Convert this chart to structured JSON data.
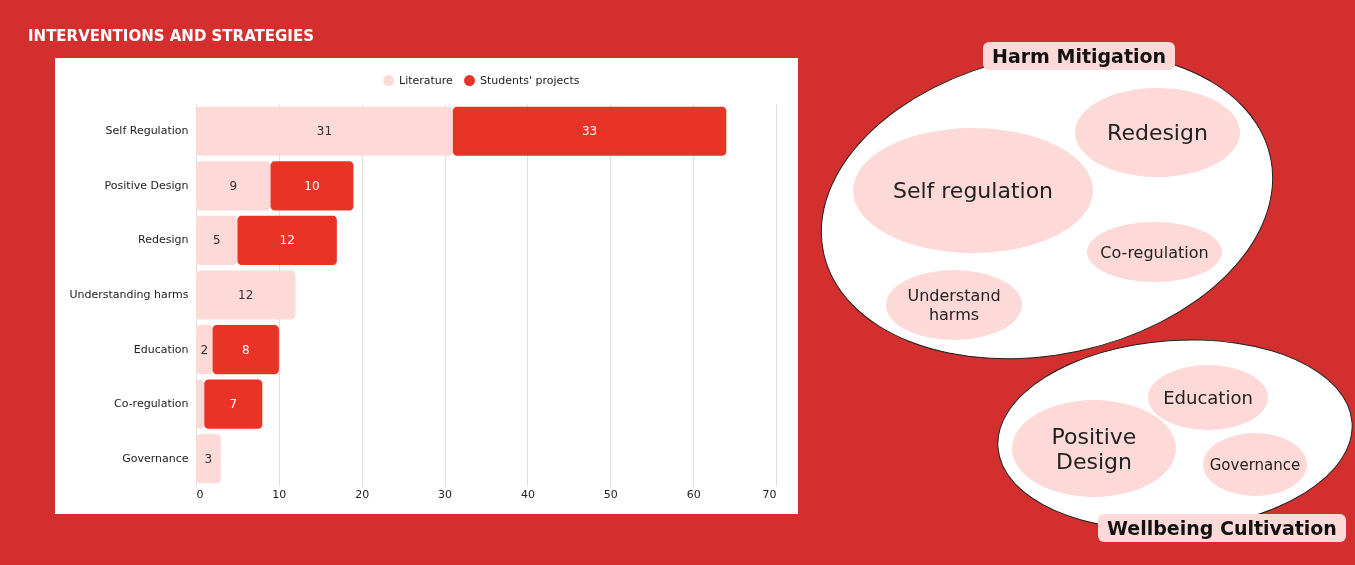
{
  "chart_data": [
    {
      "type": "bar",
      "orientation": "horizontal",
      "stacked": true,
      "title": "INTERVENTIONS AND STRATEGIES",
      "categories": [
        "Self Regulation",
        "Positive Design",
        "Redesign",
        "Understanding harms",
        "Education",
        "Co-regulation",
        "Governance"
      ],
      "series": [
        {
          "name": "Literature",
          "color": "#fdd9d8",
          "values": [
            31,
            9,
            5,
            12,
            2,
            1,
            3
          ],
          "value_labels": [
            "31",
            "9",
            "5",
            "12",
            "2",
            null,
            "3"
          ]
        },
        {
          "name": "Students' projects",
          "color": "#e83326",
          "values": [
            33,
            10,
            12,
            null,
            8,
            7,
            null
          ],
          "value_labels": [
            "33",
            "10",
            "12",
            null,
            "8",
            "7",
            null
          ]
        }
      ],
      "xlim": [
        0,
        70
      ],
      "xticks": [
        0,
        10,
        20,
        30,
        40,
        50,
        60,
        70
      ],
      "grid": "x",
      "legend": "top"
    },
    {
      "type": "other",
      "title": "Harm Mitigation",
      "annotations": [
        "Redesign",
        "Self regulation",
        "Co-regulation",
        "Understand harms"
      ]
    },
    {
      "type": "other",
      "title": "Wellbeing Cultivation",
      "annotations": [
        "Education",
        "Positive Design",
        "Governance"
      ]
    }
  ]
}
